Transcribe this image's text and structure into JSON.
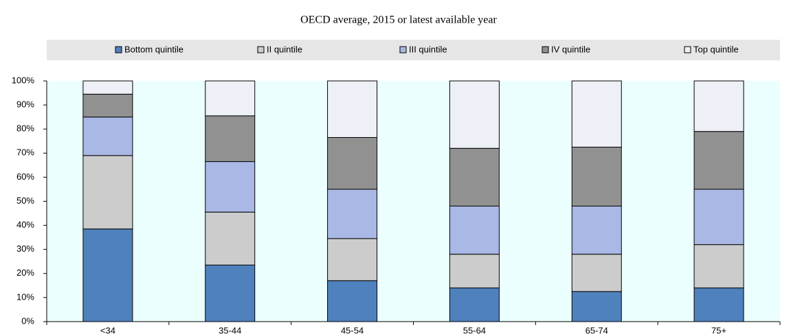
{
  "chart_data": {
    "type": "stacked-bar",
    "title": "OECD average, 2015 or latest available year",
    "categories": [
      "<34",
      "35-44",
      "45-54",
      "55-64",
      "65-74",
      "75+"
    ],
    "series": [
      {
        "name": "Bottom quintile",
        "color": "#4f81bd",
        "values": [
          38.5,
          23.5,
          17,
          14,
          12.5,
          14
        ]
      },
      {
        "name": "II quintile",
        "color": "#cccccc",
        "values": [
          30.5,
          22,
          17.5,
          14,
          15.5,
          18
        ]
      },
      {
        "name": "III quintile",
        "color": "#a9b8e4",
        "values": [
          16,
          21,
          20.5,
          20,
          20,
          23
        ]
      },
      {
        "name": "IV quintile",
        "color": "#919191",
        "values": [
          9.5,
          19,
          21.5,
          24,
          24.5,
          24
        ]
      },
      {
        "name": "Top quintile",
        "color": "#eef0f8",
        "values": [
          5.5,
          14.5,
          23.5,
          28,
          27.5,
          21
        ]
      }
    ],
    "ylim": [
      0,
      100
    ],
    "yticks": [
      {
        "value": 0,
        "label": "0%"
      },
      {
        "value": 10,
        "label": "10%"
      },
      {
        "value": 20,
        "label": "20%"
      },
      {
        "value": 30,
        "label": "30%"
      },
      {
        "value": 40,
        "label": "40%"
      },
      {
        "value": 50,
        "label": "50%"
      },
      {
        "value": 60,
        "label": "60%"
      },
      {
        "value": 70,
        "label": "70%"
      },
      {
        "value": 80,
        "label": "80%"
      },
      {
        "value": 90,
        "label": "90%"
      },
      {
        "value": 100,
        "label": "100%"
      }
    ],
    "legend": "top"
  }
}
